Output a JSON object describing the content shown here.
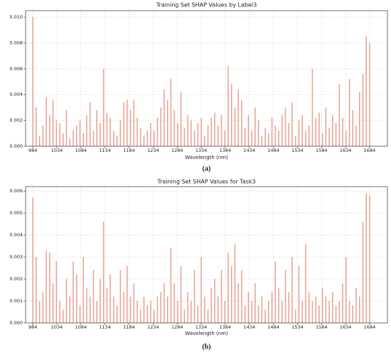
{
  "chart_data": [
    {
      "type": "bar",
      "title": "Training Set SHAP Values by Label3",
      "xlabel": "Wavelength (nm)",
      "caption": "(a)",
      "color": "#e8a090",
      "grid": true,
      "xlim": [
        969,
        1721
      ],
      "xticks": [
        984,
        1034,
        1084,
        1134,
        1184,
        1234,
        1284,
        1334,
        1384,
        1434,
        1484,
        1534,
        1584,
        1634,
        1684
      ],
      "ylim": [
        0,
        0.0105
      ],
      "yticks": [
        {
          "value": 0,
          "label": "0.000"
        },
        {
          "value": 0.002,
          "label": "0.002"
        },
        {
          "value": 0.004,
          "label": "0.004"
        },
        {
          "value": 0.006,
          "label": "0.006"
        },
        {
          "value": 0.008,
          "label": "0.008"
        },
        {
          "value": 0.01,
          "label": "0.010"
        }
      ],
      "x": [
        984,
        991,
        998,
        1005,
        1012,
        1019,
        1026,
        1033,
        1040,
        1047,
        1054,
        1061,
        1068,
        1075,
        1082,
        1089,
        1096,
        1103,
        1110,
        1117,
        1124,
        1131,
        1138,
        1145,
        1152,
        1159,
        1166,
        1173,
        1180,
        1187,
        1194,
        1201,
        1208,
        1215,
        1222,
        1229,
        1236,
        1243,
        1250,
        1257,
        1264,
        1271,
        1278,
        1285,
        1292,
        1299,
        1306,
        1313,
        1320,
        1327,
        1334,
        1341,
        1348,
        1355,
        1362,
        1369,
        1376,
        1383,
        1390,
        1397,
        1404,
        1411,
        1418,
        1425,
        1432,
        1439,
        1446,
        1453,
        1460,
        1467,
        1474,
        1481,
        1488,
        1495,
        1502,
        1509,
        1516,
        1523,
        1530,
        1537,
        1544,
        1551,
        1558,
        1565,
        1572,
        1579,
        1586,
        1593,
        1600,
        1607,
        1614,
        1621,
        1628,
        1635,
        1642,
        1649,
        1656,
        1663,
        1670,
        1677,
        1684
      ],
      "values": [
        0.01,
        0.003,
        0.0008,
        0.0016,
        0.0038,
        0.0024,
        0.0036,
        0.002,
        0.0018,
        0.001,
        0.0028,
        0.0006,
        0.0012,
        0.0016,
        0.002,
        0.001,
        0.0024,
        0.0034,
        0.0012,
        0.0028,
        0.0018,
        0.006,
        0.0026,
        0.0022,
        0.0012,
        0.0008,
        0.002,
        0.0034,
        0.0036,
        0.0028,
        0.0036,
        0.0022,
        0.0014,
        0.0008,
        0.0012,
        0.0018,
        0.0012,
        0.0022,
        0.003,
        0.0044,
        0.0036,
        0.0052,
        0.0028,
        0.0018,
        0.0042,
        0.0014,
        0.0024,
        0.002,
        0.0012,
        0.0018,
        0.0022,
        0.0008,
        0.0016,
        0.0022,
        0.0026,
        0.0016,
        0.0024,
        0.0012,
        0.0062,
        0.0048,
        0.003,
        0.0044,
        0.0036,
        0.0014,
        0.0024,
        0.0012,
        0.003,
        0.002,
        0.0008,
        0.0014,
        0.001,
        0.0022,
        0.0016,
        0.0012,
        0.0024,
        0.003,
        0.0018,
        0.0034,
        0.0008,
        0.002,
        0.0024,
        0.0012,
        0.0016,
        0.006,
        0.0022,
        0.0026,
        0.001,
        0.003,
        0.0014,
        0.0024,
        0.0018,
        0.0048,
        0.0022,
        0.0012,
        0.0052,
        0.0028,
        0.0016,
        0.0042,
        0.0056,
        0.0085,
        0.008
      ]
    },
    {
      "type": "bar",
      "title": "Training Set SHAP Values for Task3",
      "xlabel": "Wavelength (nm)",
      "caption": "(b)",
      "color": "#e8a090",
      "grid": true,
      "xlim": [
        969,
        1721
      ],
      "xticks": [
        984,
        1034,
        1084,
        1134,
        1184,
        1234,
        1284,
        1334,
        1384,
        1434,
        1484,
        1534,
        1584,
        1634,
        1684
      ],
      "ylim": [
        0,
        0.0062
      ],
      "yticks": [
        {
          "value": 0,
          "label": "0.000"
        },
        {
          "value": 0.001,
          "label": "0.001"
        },
        {
          "value": 0.002,
          "label": "0.002"
        },
        {
          "value": 0.003,
          "label": "0.003"
        },
        {
          "value": 0.004,
          "label": "0.004"
        },
        {
          "value": 0.005,
          "label": "0.005"
        },
        {
          "value": 0.006,
          "label": "0.006"
        }
      ],
      "x": [
        984,
        991,
        998,
        1005,
        1012,
        1019,
        1026,
        1033,
        1040,
        1047,
        1054,
        1061,
        1068,
        1075,
        1082,
        1089,
        1096,
        1103,
        1110,
        1117,
        1124,
        1131,
        1138,
        1145,
        1152,
        1159,
        1166,
        1173,
        1180,
        1187,
        1194,
        1201,
        1208,
        1215,
        1222,
        1229,
        1236,
        1243,
        1250,
        1257,
        1264,
        1271,
        1278,
        1285,
        1292,
        1299,
        1306,
        1313,
        1320,
        1327,
        1334,
        1341,
        1348,
        1355,
        1362,
        1369,
        1376,
        1383,
        1390,
        1397,
        1404,
        1411,
        1418,
        1425,
        1432,
        1439,
        1446,
        1453,
        1460,
        1467,
        1474,
        1481,
        1488,
        1495,
        1502,
        1509,
        1516,
        1523,
        1530,
        1537,
        1544,
        1551,
        1558,
        1565,
        1572,
        1579,
        1586,
        1593,
        1600,
        1607,
        1614,
        1621,
        1628,
        1635,
        1642,
        1649,
        1656,
        1663,
        1670,
        1677,
        1684
      ],
      "values": [
        0.0057,
        0.003,
        0.001,
        0.0014,
        0.0033,
        0.0032,
        0.0018,
        0.0028,
        0.001,
        0.0006,
        0.002,
        0.0012,
        0.0028,
        0.0022,
        0.0008,
        0.003,
        0.0016,
        0.0012,
        0.0024,
        0.001,
        0.002,
        0.0046,
        0.0016,
        0.0022,
        0.0012,
        0.0008,
        0.0024,
        0.0014,
        0.0026,
        0.0012,
        0.0018,
        0.001,
        0.0006,
        0.0012,
        0.0008,
        0.001,
        0.0006,
        0.0012,
        0.0014,
        0.0018,
        0.0012,
        0.0034,
        0.0018,
        0.001,
        0.0026,
        0.0006,
        0.0014,
        0.001,
        0.0024,
        0.0008,
        0.003,
        0.0012,
        0.0006,
        0.0016,
        0.002,
        0.0012,
        0.0024,
        0.001,
        0.0032,
        0.0026,
        0.0036,
        0.0018,
        0.0024,
        0.0008,
        0.0014,
        0.001,
        0.0018,
        0.0008,
        0.0012,
        0.0006,
        0.001,
        0.0014,
        0.0028,
        0.0016,
        0.001,
        0.0024,
        0.0014,
        0.003,
        0.0006,
        0.0026,
        0.001,
        0.0036,
        0.0014,
        0.001,
        0.0012,
        0.0008,
        0.0016,
        0.0012,
        0.001,
        0.0014,
        0.0008,
        0.001,
        0.0018,
        0.003,
        0.001,
        0.0008,
        0.0016,
        0.0012,
        0.0046,
        0.0059,
        0.0058
      ]
    }
  ]
}
